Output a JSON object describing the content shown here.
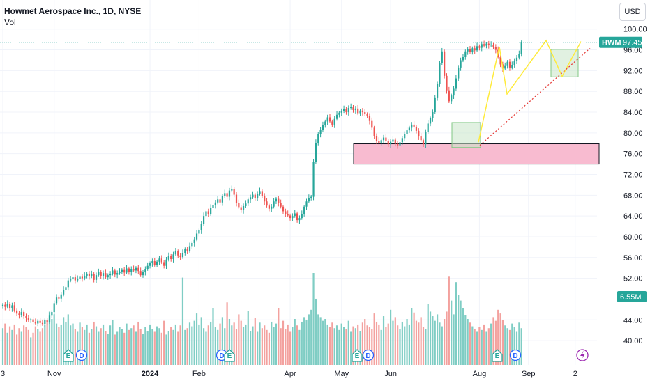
{
  "header": {
    "title": "Howmet Aerospace Inc., 1D, NYSE",
    "volume_label": "Vol",
    "currency_button": "USD"
  },
  "colors": {
    "up": "#26a69a",
    "down": "#ef5350",
    "vol_up": "#7fcdc4",
    "vol_down": "#f3a19e",
    "demand_zone": "#f8bbd0",
    "pattern_box": "#c8e6c9",
    "pattern_line": "#ffeb3b",
    "trendline": "#e53935",
    "price_tag": "#26a69a",
    "event_earnings": "#26a69a",
    "event_dividend": "#2962ff",
    "event_split": "#9c27b0"
  },
  "chart_data": {
    "type": "candlestick",
    "symbol": "HWM",
    "last_price": "97.45",
    "volume_last": "6.55M",
    "y_axis": {
      "ticks": [
        "100.00",
        "96.00",
        "92.00",
        "88.00",
        "84.00",
        "80.00",
        "76.00",
        "72.00",
        "68.00",
        "64.00",
        "60.00",
        "56.00",
        "52.00",
        "48.00",
        "44.00",
        "40.00"
      ],
      "range": [
        38.0,
        100.5
      ]
    },
    "x_axis": {
      "ticks": [
        {
          "label": "3",
          "bar": 0
        },
        {
          "label": "Nov",
          "bar": 22
        },
        {
          "label": "2024",
          "bar": 63,
          "bold": true
        },
        {
          "label": "Feb",
          "bar": 84
        },
        {
          "label": "Apr",
          "bar": 123
        },
        {
          "label": "May",
          "bar": 145
        },
        {
          "label": "Jun",
          "bar": 166
        },
        {
          "label": "Aug",
          "bar": 204
        },
        {
          "label": "Sep",
          "bar": 225
        },
        {
          "label": "2",
          "bar": 245
        }
      ]
    },
    "closes": [
      46.9,
      46.5,
      47.1,
      46.2,
      46.8,
      45.8,
      45.2,
      44.9,
      45.5,
      44.7,
      44.3,
      43.9,
      44.1,
      43.6,
      43.3,
      43.8,
      43.4,
      43.2,
      43.9,
      43.6,
      44.8,
      45.5,
      47.2,
      48.3,
      48.1,
      48.9,
      49.8,
      50.3,
      51.6,
      51.8,
      52.2,
      51.6,
      51.9,
      52.3,
      52.0,
      52.5,
      52.9,
      52.4,
      52.8,
      51.7,
      52.6,
      53.2,
      52.4,
      53.0,
      52.2,
      52.6,
      52.9,
      53.5,
      52.7,
      53.0,
      53.3,
      53.6,
      53.1,
      53.9,
      53.2,
      53.8,
      53.5,
      54.0,
      53.4,
      52.6,
      53.2,
      53.8,
      54.4,
      54.9,
      55.3,
      54.6,
      55.2,
      55.8,
      55.1,
      54.4,
      55.6,
      56.3,
      55.7,
      56.6,
      57.2,
      56.4,
      56.1,
      56.9,
      57.6,
      57.3,
      58.2,
      58.8,
      59.5,
      60.6,
      61.2,
      62.5,
      64.0,
      64.9,
      64.4,
      65.6,
      66.1,
      66.6,
      67.2,
      66.6,
      67.8,
      68.4,
      67.7,
      68.9,
      69.2,
      68.1,
      66.5,
      65.7,
      65.1,
      65.9,
      66.4,
      67.2,
      67.6,
      68.1,
      67.5,
      68.3,
      68.8,
      67.9,
      66.8,
      66.0,
      65.4,
      65.8,
      66.8,
      67.3,
      66.5,
      65.8,
      64.9,
      64.4,
      64.1,
      63.6,
      64.0,
      64.5,
      63.2,
      63.6,
      64.4,
      65.8,
      66.8,
      67.5,
      67.7,
      74.4,
      78.1,
      79.8,
      80.6,
      81.5,
      82.2,
      83.0,
      82.2,
      81.6,
      82.7,
      83.5,
      83.9,
      84.2,
      84.6,
      84.0,
      84.8,
      85.0,
      84.4,
      84.7,
      83.8,
      84.3,
      84.0,
      83.6,
      83.3,
      82.3,
      81.0,
      79.4,
      78.5,
      78.1,
      78.6,
      79.1,
      78.4,
      77.8,
      78.3,
      78.7,
      77.9,
      77.6,
      78.2,
      79.0,
      79.8,
      80.5,
      81.0,
      81.6,
      81.2,
      80.4,
      79.3,
      78.6,
      77.8,
      80.2,
      81.8,
      82.8,
      84.0,
      86.7,
      89.5,
      93.4,
      95.7,
      91.0,
      88.2,
      86.1,
      87.2,
      88.5,
      90.5,
      92.6,
      94.0,
      94.6,
      95.7,
      96.1,
      95.6,
      96.3,
      95.9,
      96.7,
      96.4,
      97.1,
      96.8,
      97.2,
      96.9,
      97.0,
      96.6,
      96.0,
      94.6,
      93.2,
      92.4,
      92.9,
      93.7,
      92.6,
      93.1,
      93.9,
      94.5,
      95.2,
      97.45
    ],
    "volumes": [
      0.4,
      0.45,
      0.35,
      0.42,
      0.38,
      0.44,
      0.33,
      0.4,
      0.36,
      0.43,
      0.41,
      0.38,
      0.3,
      0.35,
      0.42,
      0.39,
      0.36,
      0.4,
      0.44,
      0.48,
      0.58,
      0.5,
      0.55,
      0.45,
      0.41,
      0.44,
      0.52,
      0.47,
      0.55,
      0.43,
      0.45,
      0.39,
      0.36,
      0.46,
      0.41,
      0.38,
      0.44,
      0.35,
      0.39,
      0.47,
      0.42,
      0.36,
      0.4,
      0.44,
      0.37,
      0.34,
      0.43,
      0.49,
      0.33,
      0.36,
      0.41,
      0.39,
      0.35,
      0.45,
      0.38,
      0.4,
      0.43,
      0.36,
      0.47,
      0.39,
      0.34,
      0.41,
      0.37,
      0.44,
      0.39,
      0.36,
      0.42,
      0.4,
      0.35,
      0.48,
      0.33,
      0.37,
      0.41,
      0.38,
      0.44,
      0.36,
      0.43,
      0.95,
      0.38,
      0.4,
      0.46,
      0.42,
      0.48,
      0.56,
      0.44,
      0.52,
      0.4,
      0.36,
      0.43,
      0.47,
      0.62,
      0.41,
      0.38,
      0.45,
      0.52,
      0.4,
      0.68,
      0.5,
      0.43,
      0.46,
      0.39,
      0.55,
      0.48,
      0.41,
      0.44,
      0.59,
      0.37,
      0.42,
      0.51,
      0.36,
      0.46,
      0.4,
      0.43,
      0.38,
      0.35,
      0.47,
      0.41,
      0.45,
      0.62,
      0.4,
      0.48,
      0.39,
      0.44,
      0.36,
      0.41,
      0.5,
      0.43,
      0.38,
      0.47,
      0.52,
      0.49,
      0.55,
      0.6,
      1.0,
      0.72,
      0.55,
      0.52,
      0.48,
      0.5,
      0.44,
      0.41,
      0.46,
      0.4,
      0.43,
      0.38,
      0.45,
      0.41,
      0.39,
      0.48,
      0.36,
      0.42,
      0.4,
      0.44,
      0.37,
      0.46,
      0.5,
      0.43,
      0.41,
      0.39,
      0.56,
      0.47,
      0.44,
      0.38,
      0.53,
      0.41,
      0.45,
      0.6,
      0.48,
      0.52,
      0.43,
      0.39,
      0.47,
      0.42,
      0.5,
      0.44,
      0.62,
      0.57,
      0.48,
      0.46,
      0.52,
      0.41,
      0.39,
      0.66,
      0.58,
      0.53,
      0.48,
      0.55,
      0.46,
      0.42,
      0.5,
      0.58,
      0.96,
      0.7,
      0.55,
      0.9,
      0.76,
      0.7,
      0.62,
      0.54,
      0.5,
      0.46,
      0.42,
      0.39,
      0.36,
      0.41,
      0.38,
      0.44,
      0.36,
      0.4,
      0.45,
      0.52,
      0.48,
      0.6,
      0.56,
      0.49,
      0.43,
      0.4,
      0.38,
      0.45,
      0.41,
      0.36,
      0.46,
      0.4,
      0.38,
      0.42,
      0.9
    ]
  }
}
